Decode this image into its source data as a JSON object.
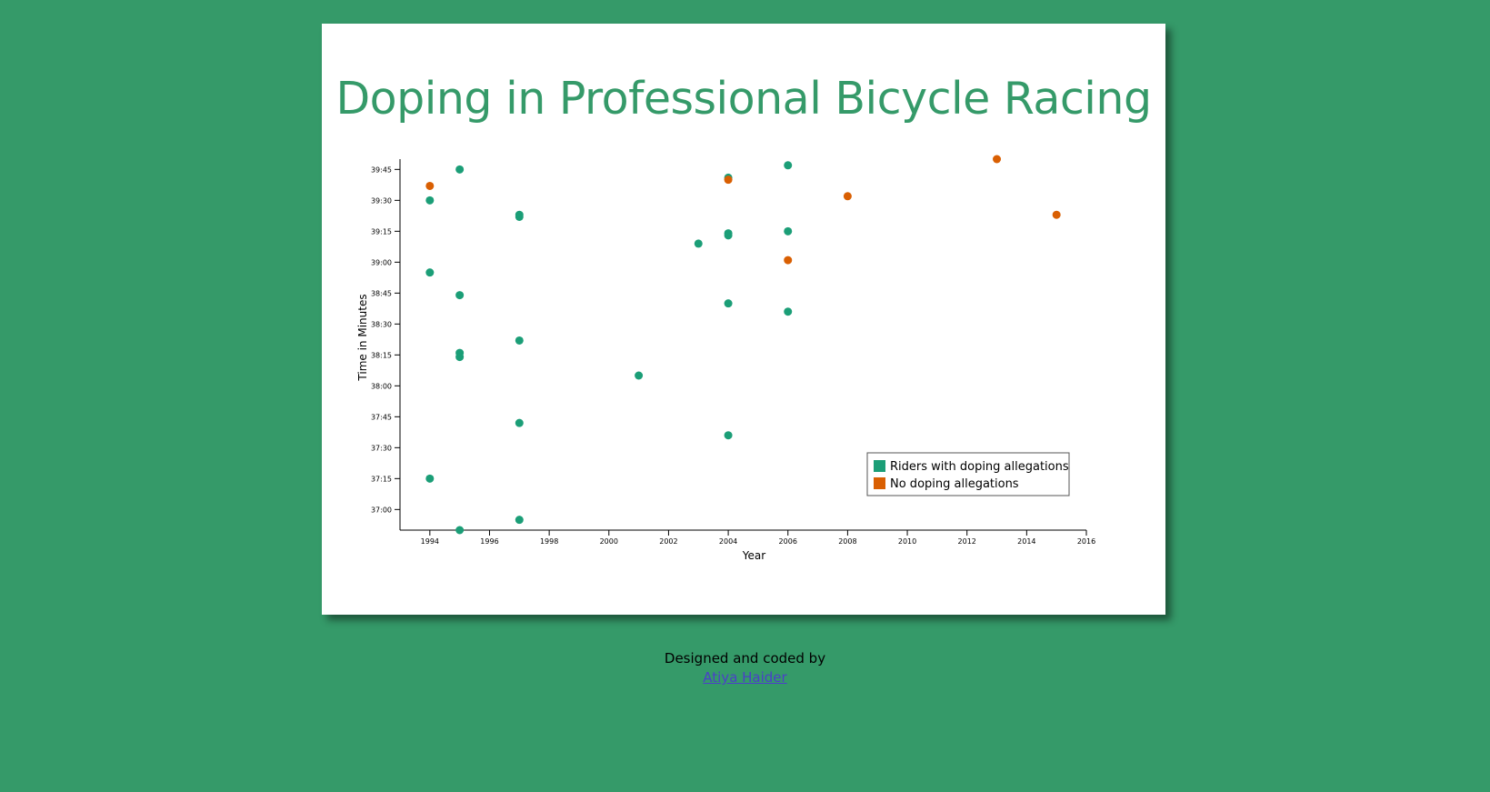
{
  "page": {
    "title": "Doping in Professional Bicycle Racing",
    "footer_text": "Designed and coded by",
    "author_link": "Atiya Haider"
  },
  "colors": {
    "background": "#359a69",
    "doping": "#1b9e77",
    "no_doping": "#d95f02"
  },
  "chart_data": {
    "type": "scatter",
    "title": "Doping in Professional Bicycle Racing",
    "xlabel": "Year",
    "ylabel": "Time in Minutes",
    "xlim": [
      1993,
      2016
    ],
    "ylim": [
      "36:50",
      "39:50"
    ],
    "x_ticks": [
      "1994",
      "1996",
      "1998",
      "2000",
      "2002",
      "2004",
      "2006",
      "2008",
      "2010",
      "2012",
      "2014",
      "2016"
    ],
    "y_ticks": [
      "37:00",
      "37:15",
      "37:30",
      "37:45",
      "38:00",
      "38:15",
      "38:30",
      "38:45",
      "39:00",
      "39:15",
      "39:30",
      "39:45"
    ],
    "legend_position": "bottom-right",
    "series": [
      {
        "name": "Riders with doping allegations",
        "color": "#1b9e77",
        "points": [
          {
            "year": 1994,
            "time": "39:30"
          },
          {
            "year": 1994,
            "time": "38:55"
          },
          {
            "year": 1994,
            "time": "37:15"
          },
          {
            "year": 1995,
            "time": "39:45"
          },
          {
            "year": 1995,
            "time": "38:44"
          },
          {
            "year": 1995,
            "time": "38:16"
          },
          {
            "year": 1995,
            "time": "38:14"
          },
          {
            "year": 1995,
            "time": "36:50"
          },
          {
            "year": 1997,
            "time": "39:23"
          },
          {
            "year": 1997,
            "time": "39:22"
          },
          {
            "year": 1997,
            "time": "38:22"
          },
          {
            "year": 1997,
            "time": "37:42"
          },
          {
            "year": 1997,
            "time": "36:55"
          },
          {
            "year": 2001,
            "time": "38:05"
          },
          {
            "year": 2003,
            "time": "39:09"
          },
          {
            "year": 2004,
            "time": "39:41"
          },
          {
            "year": 2004,
            "time": "39:14"
          },
          {
            "year": 2004,
            "time": "39:13"
          },
          {
            "year": 2004,
            "time": "38:40"
          },
          {
            "year": 2004,
            "time": "37:36"
          },
          {
            "year": 2006,
            "time": "39:47"
          },
          {
            "year": 2006,
            "time": "39:15"
          },
          {
            "year": 2006,
            "time": "38:36"
          }
        ]
      },
      {
        "name": "No doping allegations",
        "color": "#d95f02",
        "points": [
          {
            "year": 1994,
            "time": "39:37"
          },
          {
            "year": 2004,
            "time": "39:40"
          },
          {
            "year": 2006,
            "time": "39:01"
          },
          {
            "year": 2008,
            "time": "39:32"
          },
          {
            "year": 2013,
            "time": "39:50"
          },
          {
            "year": 2015,
            "time": "39:23"
          }
        ]
      }
    ]
  }
}
